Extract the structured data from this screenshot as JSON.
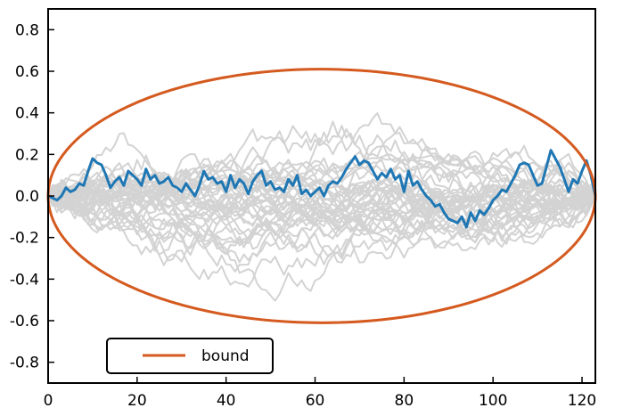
{
  "chart_data": {
    "type": "line",
    "title": "",
    "xlabel": "",
    "ylabel": "",
    "xlim": [
      0,
      123
    ],
    "ylim": [
      -0.9,
      0.9
    ],
    "xticks": [
      0,
      20,
      40,
      60,
      80,
      100,
      120
    ],
    "yticks": [
      0.8,
      0.6,
      0.4,
      0.2,
      0.0,
      -0.2,
      -0.4,
      -0.6,
      -0.8
    ],
    "ytick_labels": [
      "0.8",
      "0.6",
      "0.4",
      "0.2",
      "0.0",
      "-0.2",
      "-0.4",
      "-0.6",
      "-0.8"
    ],
    "grid": false,
    "legend": {
      "placement": "lower-left",
      "entries": [
        {
          "label": "bound",
          "color": "#d45a1f"
        }
      ]
    },
    "colors": {
      "background_paths": "#d3d3d3",
      "highlight_path": "#1f77b4",
      "bound": "#d45a1f",
      "axes": "#000000"
    },
    "bound": {
      "shape": "ellipse",
      "center_x": 61.5,
      "center_y": 0.0,
      "half_width": 61.5,
      "half_height": 0.61
    },
    "background_paths": {
      "count": 40,
      "length": 124,
      "approx_spread": 0.6
    },
    "series": [
      {
        "color": "#1f77b4",
        "x": [
          0,
          1,
          2,
          3,
          4,
          5,
          6,
          7,
          8,
          9,
          10,
          11,
          12,
          13,
          14,
          15,
          16,
          17,
          18,
          19,
          20,
          21,
          22,
          23,
          24,
          25,
          26,
          27,
          28,
          29,
          30,
          31,
          32,
          33,
          34,
          35,
          36,
          37,
          38,
          39,
          40,
          41,
          42,
          43,
          44,
          45,
          46,
          47,
          48,
          49,
          50,
          51,
          52,
          53,
          54,
          55,
          56,
          57,
          58,
          59,
          60,
          61,
          62,
          63,
          64,
          65,
          66,
          67,
          68,
          69,
          70,
          71,
          72,
          73,
          74,
          75,
          76,
          77,
          78,
          79,
          80,
          81,
          82,
          83,
          84,
          85,
          86,
          87,
          88,
          89,
          90,
          91,
          92,
          93,
          94,
          95,
          96,
          97,
          98,
          99,
          100,
          101,
          102,
          103,
          104,
          105,
          106,
          107,
          108,
          109,
          110,
          111,
          112,
          113,
          114,
          115,
          116,
          117,
          118,
          119,
          120,
          121,
          122,
          123
        ],
        "values": [
          0.0,
          -0.01,
          -0.02,
          0.0,
          0.04,
          0.02,
          0.03,
          0.06,
          0.05,
          0.12,
          0.18,
          0.16,
          0.15,
          0.1,
          0.04,
          0.07,
          0.09,
          0.05,
          0.12,
          0.1,
          0.08,
          0.05,
          0.13,
          0.08,
          0.1,
          0.06,
          0.07,
          0.09,
          0.05,
          0.04,
          0.02,
          0.06,
          0.03,
          0.0,
          0.05,
          0.12,
          0.08,
          0.09,
          0.06,
          0.07,
          0.02,
          0.1,
          0.04,
          0.08,
          0.06,
          0.01,
          0.07,
          0.1,
          0.12,
          0.05,
          0.07,
          0.03,
          0.04,
          0.02,
          0.08,
          0.05,
          0.1,
          0.01,
          0.03,
          0.0,
          0.02,
          0.04,
          0.0,
          0.05,
          0.07,
          0.06,
          0.09,
          0.13,
          0.16,
          0.19,
          0.15,
          0.17,
          0.16,
          0.12,
          0.08,
          0.11,
          0.09,
          0.13,
          0.08,
          0.1,
          0.02,
          0.12,
          0.05,
          0.07,
          0.03,
          0.0,
          -0.02,
          -0.05,
          -0.04,
          -0.08,
          -0.11,
          -0.12,
          -0.13,
          -0.1,
          -0.15,
          -0.08,
          -0.12,
          -0.07,
          -0.09,
          -0.06,
          -0.02,
          0.0,
          0.03,
          0.02,
          0.06,
          0.1,
          0.15,
          0.16,
          0.15,
          0.1,
          0.05,
          0.06,
          0.14,
          0.22,
          0.18,
          0.14,
          0.08,
          0.02,
          0.08,
          0.06,
          0.12,
          0.17,
          0.1,
          0.0
        ]
      }
    ]
  }
}
